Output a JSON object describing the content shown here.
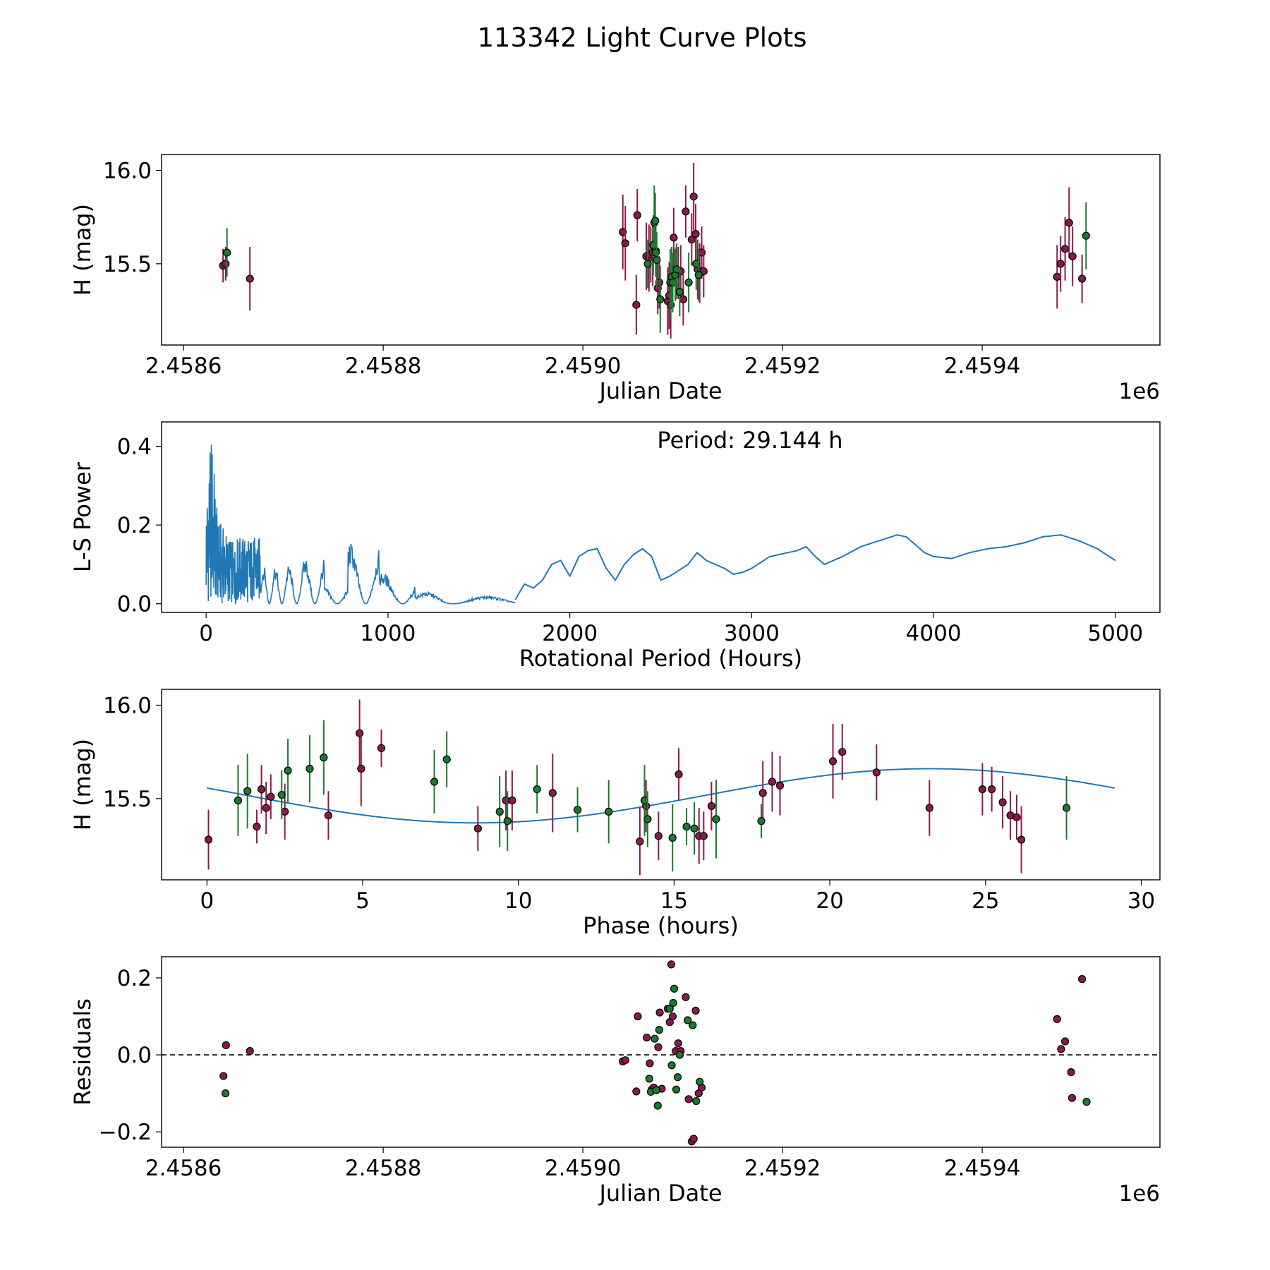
{
  "figure_title": "113342 Light Curve Plots",
  "colors": {
    "ztf_r": "#8b1a4a",
    "ztf_g": "#1a7a2e",
    "curve": "#1f77b4",
    "axes": "#000000"
  },
  "chart_data": [
    {
      "id": "lightcurve",
      "type": "scatter",
      "xlabel": "Julian Date",
      "ylabel": "H (mag)",
      "offset_label": "1e6",
      "xlim": [
        2458578,
        2459578
      ],
      "ylim": [
        15.065,
        16.085
      ],
      "xticks": [
        2458600,
        2458800,
        2459000,
        2459200,
        2459400
      ],
      "xtick_labels": [
        "2.4586",
        "2.4588",
        "2.4590",
        "2.4592",
        "2.4594"
      ],
      "yticks": [
        15.5,
        16.0
      ],
      "ytick_labels": [
        "15.5",
        "16.0"
      ],
      "series": [
        {
          "name": "r",
          "color_key": "ztf_r",
          "x": [
            2458639.6,
            2458642.2,
            2458666.5,
            2459040.0,
            2459042.5,
            2459053.5,
            2459054.5,
            2459063.5,
            2459066.2,
            2459068.0,
            2459070.0,
            2459073.0,
            2459075.0,
            2459076.5,
            2459085.0,
            2459086.5,
            2459088.0,
            2459091.0,
            2459093.5,
            2459095.5,
            2459098.0,
            2459100.5,
            2459103.0,
            2459109.0,
            2459111.0,
            2459113.0,
            2459115.0,
            2459117.0,
            2459119.0,
            2459121.0,
            2459475.0,
            2459478.5,
            2459483.0,
            2459487.0,
            2459490.5,
            2459500.0
          ],
          "y": [
            15.49,
            15.5,
            15.42,
            15.67,
            15.61,
            15.28,
            15.76,
            15.54,
            15.53,
            15.55,
            15.56,
            15.57,
            15.37,
            15.4,
            15.3,
            15.33,
            15.28,
            15.64,
            15.45,
            15.45,
            15.46,
            15.31,
            15.78,
            15.63,
            15.86,
            15.66,
            15.47,
            15.45,
            15.56,
            15.46,
            15.43,
            15.5,
            15.58,
            15.72,
            15.54,
            15.42
          ],
          "err": [
            0.09,
            0.09,
            0.17,
            0.2,
            0.2,
            0.16,
            0.14,
            0.18,
            0.18,
            0.15,
            0.18,
            0.14,
            0.14,
            0.14,
            0.18,
            0.18,
            0.18,
            0.16,
            0.14,
            0.14,
            0.14,
            0.14,
            0.14,
            0.14,
            0.18,
            0.16,
            0.16,
            0.16,
            0.14,
            0.14,
            0.17,
            0.15,
            0.17,
            0.19,
            0.16,
            0.13
          ]
        },
        {
          "name": "g",
          "color_key": "ztf_g",
          "x": [
            2458643.5,
            2459065.0,
            2459070.5,
            2459071.5,
            2459072.5,
            2459073.0,
            2459074.0,
            2459077.5,
            2459087.5,
            2459089.0,
            2459090.0,
            2459092.5,
            2459094.0,
            2459097.0,
            2459106.0,
            2459113.5,
            2459116.0,
            2459504.0
          ],
          "y": [
            15.56,
            15.5,
            15.6,
            15.72,
            15.73,
            15.56,
            15.52,
            15.31,
            15.4,
            15.43,
            15.4,
            15.44,
            15.47,
            15.35,
            15.4,
            15.5,
            15.44,
            15.65
          ],
          "err": [
            0.13,
            0.13,
            0.16,
            0.2,
            0.15,
            0.12,
            0.15,
            0.18,
            0.18,
            0.16,
            0.16,
            0.14,
            0.14,
            0.13,
            0.16,
            0.14,
            0.14,
            0.18
          ]
        }
      ]
    },
    {
      "id": "periodogram",
      "type": "line",
      "xlabel": "Rotational Period (Hours)",
      "ylabel": "L-S Power",
      "annotation": "Period: 29.144 h",
      "xlim": [
        -245,
        5245
      ],
      "ylim": [
        -0.022,
        0.462
      ],
      "xticks": [
        0,
        1000,
        2000,
        3000,
        4000,
        5000
      ],
      "xtick_labels": [
        "0",
        "1000",
        "2000",
        "3000",
        "4000",
        "5000"
      ],
      "yticks": [
        0.0,
        0.2,
        0.4
      ],
      "ytick_labels": [
        "0.0",
        "0.2",
        "0.4"
      ],
      "noise_region_max_x": 1700,
      "smooth_x": [
        1700,
        1750,
        1800,
        1850,
        1900,
        1950,
        2000,
        2050,
        2100,
        2150,
        2200,
        2250,
        2300,
        2350,
        2400,
        2450,
        2500,
        2550,
        2600,
        2650,
        2700,
        2750,
        2800,
        2850,
        2900,
        2950,
        3000,
        3100,
        3200,
        3250,
        3300,
        3350,
        3400,
        3500,
        3600,
        3700,
        3800,
        3850,
        3900,
        3950,
        4000,
        4100,
        4200,
        4300,
        4400,
        4500,
        4600,
        4700,
        4800,
        4900,
        5000
      ],
      "smooth_y": [
        0.01,
        0.05,
        0.04,
        0.06,
        0.1,
        0.11,
        0.07,
        0.12,
        0.135,
        0.14,
        0.09,
        0.06,
        0.1,
        0.125,
        0.14,
        0.12,
        0.06,
        0.07,
        0.085,
        0.1,
        0.13,
        0.11,
        0.1,
        0.09,
        0.075,
        0.08,
        0.09,
        0.12,
        0.13,
        0.135,
        0.145,
        0.12,
        0.1,
        0.12,
        0.145,
        0.16,
        0.175,
        0.17,
        0.15,
        0.13,
        0.12,
        0.115,
        0.13,
        0.14,
        0.145,
        0.155,
        0.17,
        0.175,
        0.16,
        0.14,
        0.11
      ]
    },
    {
      "id": "phased",
      "type": "scatter",
      "xlabel": "Phase (hours)",
      "ylabel": "H (mag)",
      "xlim": [
        -1.457,
        30.6
      ],
      "ylim": [
        15.065,
        16.085
      ],
      "xticks": [
        0,
        5,
        10,
        15,
        20,
        25,
        30
      ],
      "xtick_labels": [
        "0",
        "5",
        "10",
        "15",
        "20",
        "25",
        "30"
      ],
      "yticks": [
        15.5,
        16.0
      ],
      "ytick_labels": [
        "15.5",
        "16.0"
      ],
      "model": {
        "period_h": 29.144,
        "mean": 15.515,
        "amp1": 0.145,
        "phase1": 2.85,
        "amp2": 0.0,
        "phase2": 0.0
      },
      "series": [
        {
          "name": "r",
          "color_key": "ztf_r",
          "x": [
            0.05,
            1.6,
            1.75,
            1.9,
            2.05,
            2.5,
            3.9,
            4.9,
            4.95,
            5.6,
            8.7,
            9.6,
            9.8,
            11.1,
            13.9,
            14.1,
            14.5,
            15.15,
            15.8,
            15.95,
            16.2,
            17.85,
            18.15,
            18.4,
            20.1,
            20.4,
            21.5,
            23.2,
            24.9,
            25.2,
            25.55,
            25.8,
            26.0,
            26.15
          ],
          "y": [
            15.28,
            15.35,
            15.55,
            15.45,
            15.51,
            15.43,
            15.41,
            15.85,
            15.66,
            15.77,
            15.34,
            15.49,
            15.49,
            15.53,
            15.27,
            15.46,
            15.3,
            15.63,
            15.3,
            15.3,
            15.46,
            15.53,
            15.59,
            15.57,
            15.7,
            15.75,
            15.64,
            15.45,
            15.55,
            15.55,
            15.48,
            15.41,
            15.4,
            15.28
          ],
          "err": [
            0.16,
            0.09,
            0.13,
            0.14,
            0.12,
            0.15,
            0.13,
            0.18,
            0.2,
            0.1,
            0.12,
            0.16,
            0.16,
            0.21,
            0.18,
            0.14,
            0.13,
            0.14,
            0.15,
            0.13,
            0.13,
            0.17,
            0.16,
            0.16,
            0.2,
            0.15,
            0.15,
            0.15,
            0.14,
            0.12,
            0.14,
            0.13,
            0.12,
            0.18
          ]
        },
        {
          "name": "g",
          "color_key": "ztf_g",
          "x": [
            1.0,
            1.3,
            2.4,
            2.6,
            3.3,
            3.75,
            7.3,
            7.7,
            9.4,
            9.65,
            10.6,
            11.9,
            12.9,
            14.05,
            14.15,
            14.95,
            15.4,
            15.65,
            16.35,
            17.8,
            27.6
          ],
          "y": [
            15.49,
            15.54,
            15.52,
            15.65,
            15.66,
            15.72,
            15.59,
            15.71,
            15.43,
            15.38,
            15.55,
            15.44,
            15.43,
            15.49,
            15.39,
            15.29,
            15.35,
            15.34,
            15.39,
            15.38,
            15.45
          ],
          "err": [
            0.19,
            0.2,
            0.13,
            0.17,
            0.18,
            0.2,
            0.17,
            0.15,
            0.19,
            0.16,
            0.13,
            0.12,
            0.17,
            0.19,
            0.15,
            0.18,
            0.1,
            0.14,
            0.21,
            0.09,
            0.17
          ]
        }
      ]
    },
    {
      "id": "residuals",
      "type": "scatter",
      "xlabel": "Julian Date",
      "ylabel": "Residuals",
      "offset_label": "1e6",
      "reference_line_y": 0.0,
      "xlim": [
        2458578,
        2459578
      ],
      "ylim": [
        -0.24,
        0.255
      ],
      "xticks": [
        2458600,
        2458800,
        2459000,
        2459200,
        2459400
      ],
      "xtick_labels": [
        "2.4586",
        "2.4588",
        "2.4590",
        "2.4592",
        "2.4594"
      ],
      "yticks": [
        -0.2,
        0.0,
        0.2
      ],
      "ytick_labels": [
        "−0.2",
        "0.0",
        "0.2"
      ],
      "series": [
        {
          "name": "r",
          "color_key": "ztf_r",
          "x": [
            2458640.0,
            2458642.5,
            2458666.5,
            2459040.0,
            2459042.5,
            2459053.5,
            2459055.0,
            2459064.0,
            2459067.0,
            2459069.0,
            2459071.0,
            2459077.0,
            2459079.0,
            2459075.5,
            2459085.0,
            2459087.0,
            2459088.5,
            2459090.0,
            2459093.0,
            2459095.5,
            2459098.0,
            2459103.0,
            2459106.0,
            2459109.0,
            2459111.0,
            2459113.0,
            2459116.0,
            2459119.0,
            2459475.0,
            2459479.0,
            2459483.0,
            2459489.0,
            2459490.0,
            2459500.0
          ],
          "y": [
            -0.055,
            0.025,
            0.01,
            -0.017,
            -0.014,
            -0.095,
            0.1,
            0.045,
            -0.022,
            -0.09,
            -0.085,
            0.11,
            -0.088,
            0.02,
            0.12,
            0.085,
            0.235,
            0.1,
            0.01,
            0.03,
            0.01,
            0.15,
            -0.115,
            -0.225,
            -0.218,
            0.115,
            -0.1,
            -0.085,
            0.093,
            0.015,
            0.035,
            -0.045,
            -0.112,
            0.197
          ],
          "err": []
        },
        {
          "name": "g",
          "color_key": "ztf_g",
          "x": [
            2458642.0,
            2459066.5,
            2459068.0,
            2459072.0,
            2459073.5,
            2459075.0,
            2459076.5,
            2459087.0,
            2459089.0,
            2459090.5,
            2459091.5,
            2459093.5,
            2459095.0,
            2459097.0,
            2459105.0,
            2459110.0,
            2459113.5,
            2459117.0,
            2459504.5
          ],
          "y": [
            -0.1,
            -0.062,
            -0.096,
            0.042,
            -0.092,
            -0.132,
            0.065,
            0.12,
            -0.027,
            0.135,
            0.172,
            -0.09,
            -0.058,
            0.0,
            0.09,
            0.077,
            -0.12,
            -0.07,
            -0.122
          ],
          "err": []
        }
      ]
    }
  ]
}
